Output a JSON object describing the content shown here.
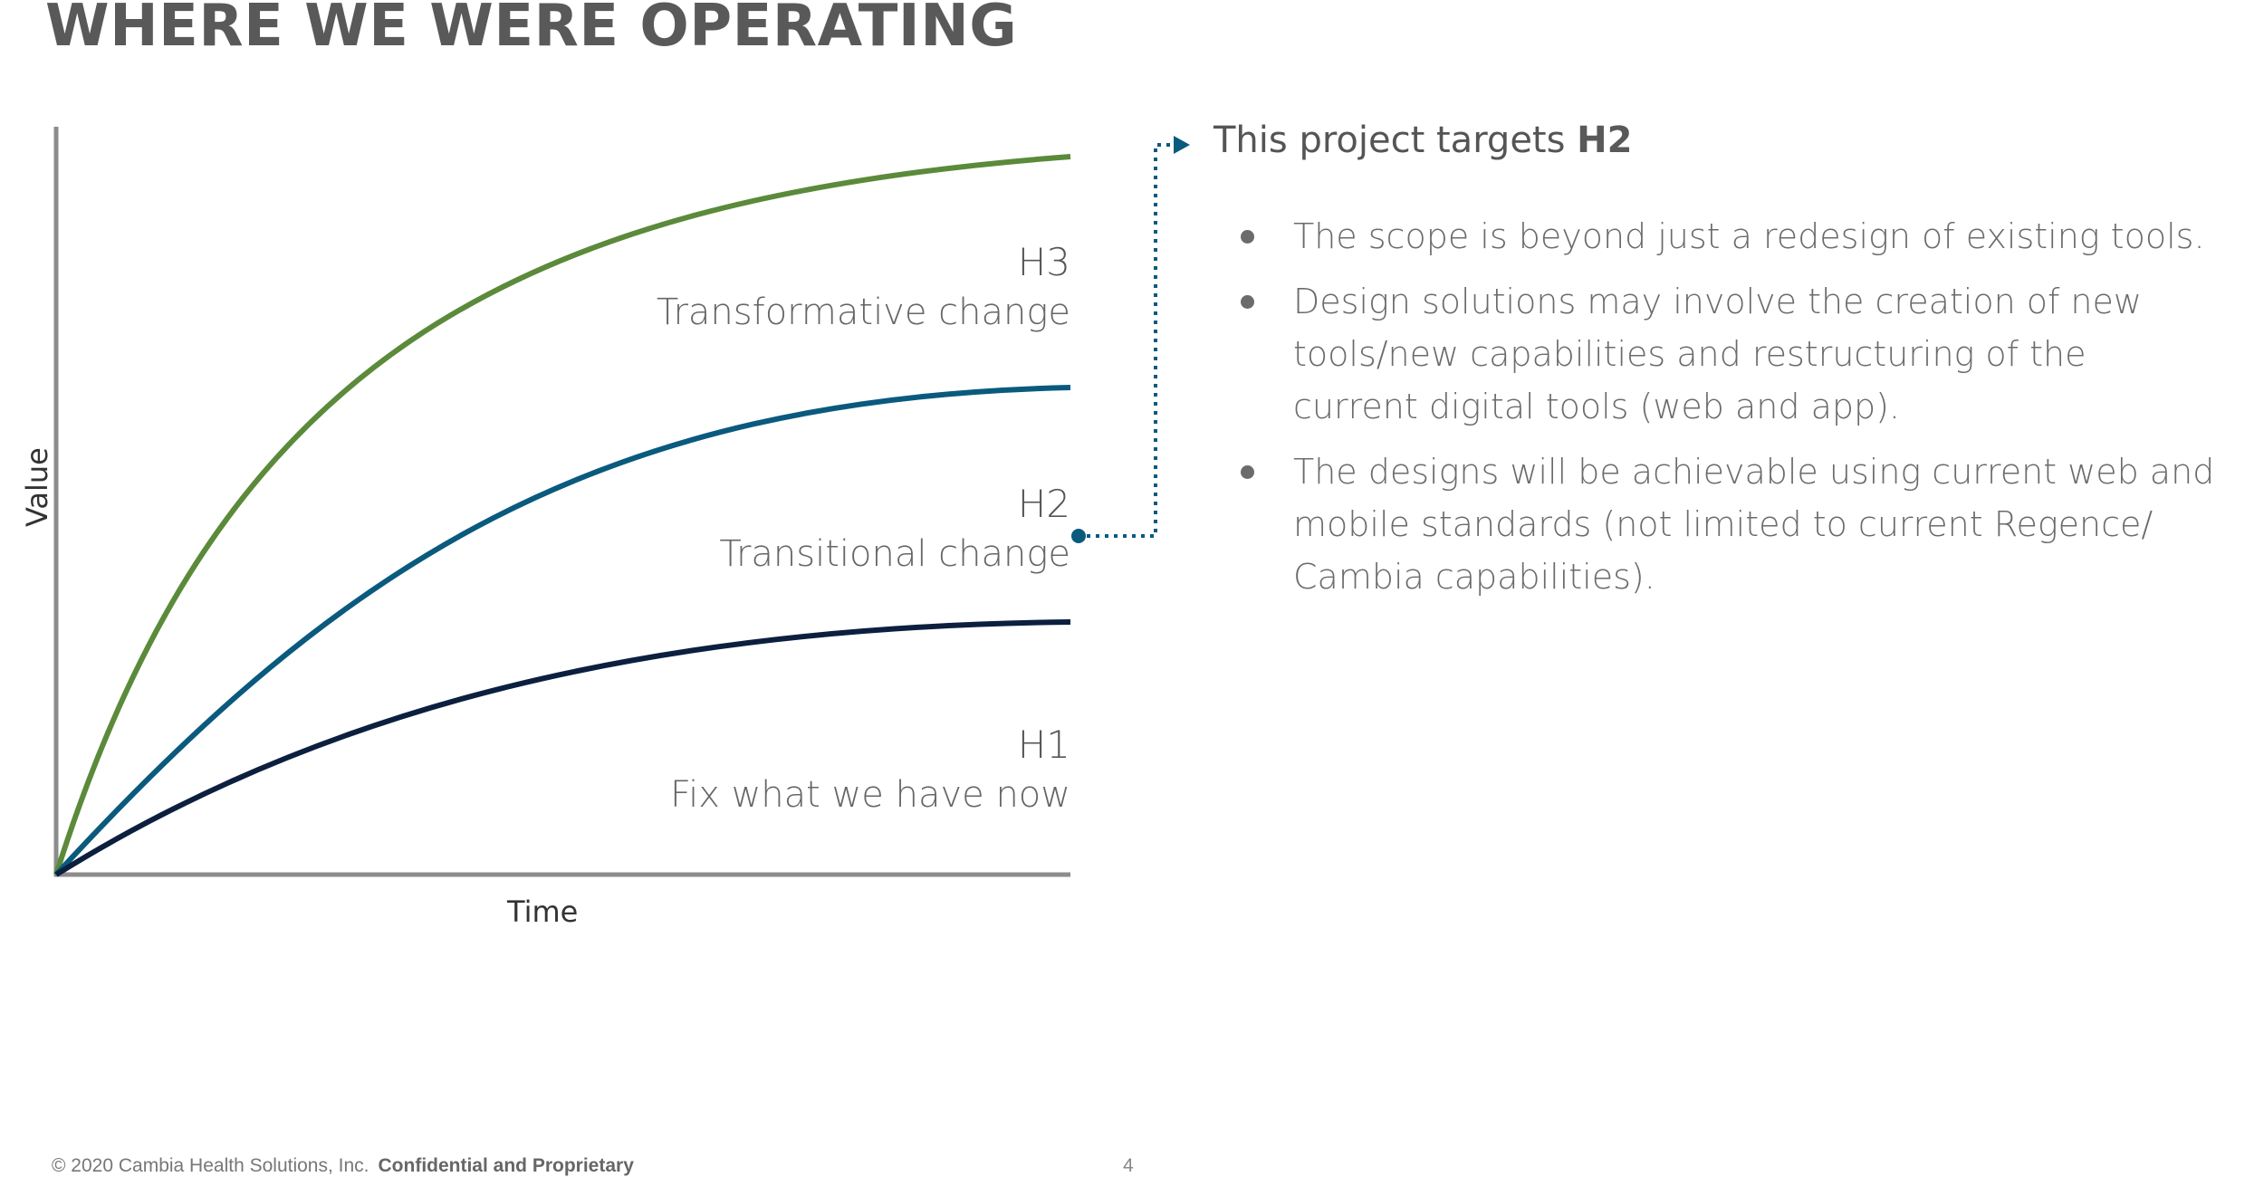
{
  "slide": {
    "title": "WHERE WE WERE OPERATING",
    "footer_copyright": "© 2020 Cambia Health Solutions, Inc.",
    "footer_confidential": "Confidential and Proprietary",
    "page_number": "4"
  },
  "diagram": {
    "x_axis_label": "Time",
    "y_axis_label": "Value",
    "horizons": [
      {
        "name": "H3",
        "description": "Transformative change",
        "color": "#5b8a3a"
      },
      {
        "name": "H2",
        "description": "Transitional change",
        "color": "#0a5a7e"
      },
      {
        "name": "H1",
        "description": "Fix what we have now",
        "color": "#0c1f3f"
      }
    ],
    "axis_color": "#8c8c8c",
    "connector_color": "#0a5a7e"
  },
  "callout": {
    "prefix": "This project targets ",
    "target": "H2",
    "bullets": [
      "The scope is beyond just a redesign of existing tools.",
      "Design solutions may involve the creation of new tools/new capabilities and restructuring of the current digital tools (web and app).",
      "The designs will be achievable using current web and mobile standards (not limited to current Regence/ Cambia capabilities)."
    ]
  }
}
